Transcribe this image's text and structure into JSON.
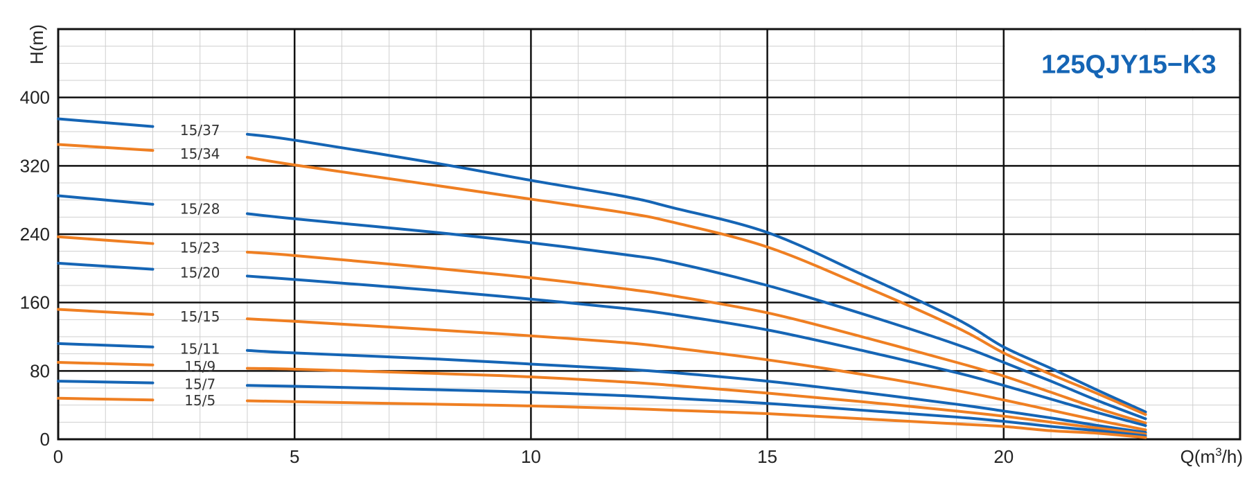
{
  "chart_data": {
    "type": "line",
    "title": "125QJY15−K3",
    "xlabel": "Q(m³/h)",
    "ylabel": "H(m)",
    "xlim": [
      0,
      25
    ],
    "ylim": [
      0,
      480
    ],
    "x_ticks": [
      "0",
      "5",
      "10",
      "15",
      "20"
    ],
    "y_ticks": [
      "0",
      "80",
      "160",
      "240",
      "320",
      "400"
    ],
    "x_tick_values": [
      0,
      5,
      10,
      15,
      20
    ],
    "y_tick_values": [
      0,
      80,
      160,
      240,
      320,
      400
    ],
    "grid": true,
    "colors": {
      "blue": "#1565b5",
      "orange": "#ef7f22",
      "title": "#1565b5"
    },
    "series": [
      {
        "name": "15/37",
        "color": "#1565b5",
        "x": [
          0,
          2
        ],
        "y": [
          375,
          366
        ],
        "x2": [
          4,
          5,
          8,
          10,
          12,
          13,
          15,
          17,
          19,
          20,
          21,
          22,
          23
        ],
        "y2": [
          357,
          350,
          323,
          303,
          284,
          271,
          242,
          193,
          141,
          108,
          83,
          57,
          32
        ]
      },
      {
        "name": "15/34",
        "color": "#ef7f22",
        "x": [
          0,
          2
        ],
        "y": [
          345,
          338
        ],
        "x2": [
          4,
          5,
          8,
          10,
          12,
          13,
          15,
          17,
          19,
          20,
          21,
          22,
          23
        ],
        "y2": [
          330,
          321,
          297,
          281,
          265,
          254,
          225,
          180,
          131,
          101,
          76,
          53,
          29
        ]
      },
      {
        "name": "15/28",
        "color": "#1565b5",
        "x": [
          0,
          2
        ],
        "y": [
          285,
          275
        ],
        "x2": [
          4,
          5,
          8,
          10,
          12,
          13,
          15,
          17,
          19,
          20,
          21,
          22,
          23
        ],
        "y2": [
          264,
          258,
          242,
          230,
          216,
          207,
          180,
          147,
          111,
          90,
          68,
          45,
          24
        ]
      },
      {
        "name": "15/23",
        "color": "#ef7f22",
        "x": [
          0,
          2
        ],
        "y": [
          237,
          229
        ],
        "x2": [
          4,
          5,
          8,
          10,
          12,
          13,
          15,
          17,
          19,
          20,
          21,
          22,
          23
        ],
        "y2": [
          219,
          215,
          200,
          189,
          176,
          168,
          148,
          120,
          90,
          74,
          55,
          36,
          19
        ]
      },
      {
        "name": "15/20",
        "color": "#1565b5",
        "x": [
          0,
          2
        ],
        "y": [
          206,
          199
        ],
        "x2": [
          4,
          5,
          8,
          10,
          12,
          13,
          15,
          17,
          19,
          20,
          21,
          22,
          23
        ],
        "y2": [
          191,
          187,
          174,
          164,
          153,
          146,
          128,
          104,
          78,
          63,
          47,
          31,
          16
        ]
      },
      {
        "name": "15/15",
        "color": "#ef7f22",
        "x": [
          0,
          2
        ],
        "y": [
          152,
          146
        ],
        "x2": [
          4,
          5,
          8,
          10,
          12,
          13,
          15,
          17,
          19,
          20,
          21,
          22,
          23
        ],
        "y2": [
          141,
          138,
          128,
          121,
          113,
          107,
          93,
          76,
          57,
          46,
          34,
          22,
          11
        ]
      },
      {
        "name": "15/11",
        "color": "#1565b5",
        "x": [
          0,
          2
        ],
        "y": [
          112,
          108
        ],
        "x2": [
          4,
          5,
          8,
          10,
          12,
          13,
          15,
          17,
          19,
          20,
          21,
          22,
          23
        ],
        "y2": [
          104,
          101,
          94,
          88,
          82,
          78,
          68,
          55,
          41,
          33,
          25,
          16,
          8
        ]
      },
      {
        "name": "15/9",
        "color": "#ef7f22",
        "x": [
          0,
          2
        ],
        "y": [
          90,
          87
        ],
        "x2": [
          4,
          5,
          8,
          10,
          12,
          13,
          15,
          17,
          19,
          20,
          21,
          22,
          23
        ],
        "y2": [
          83,
          82,
          77,
          73,
          67,
          63,
          54,
          44,
          33,
          27,
          20,
          13,
          6
        ]
      },
      {
        "name": "15/7",
        "color": "#1565b5",
        "x": [
          0,
          2
        ],
        "y": [
          68,
          66
        ],
        "x2": [
          4,
          5,
          8,
          10,
          12,
          13,
          15,
          17,
          19,
          20,
          21,
          22,
          23
        ],
        "y2": [
          63,
          62,
          58,
          55,
          51,
          48,
          42,
          34,
          26,
          21,
          15,
          10,
          4
        ]
      },
      {
        "name": "15/5",
        "color": "#ef7f22",
        "x": [
          0,
          2
        ],
        "y": [
          48,
          46
        ],
        "x2": [
          4,
          5,
          8,
          10,
          12,
          13,
          15,
          17,
          19,
          20,
          21,
          22,
          23
        ],
        "y2": [
          45,
          44,
          41,
          39,
          36,
          34,
          30,
          24,
          18,
          15,
          10,
          7,
          2
        ]
      }
    ]
  }
}
